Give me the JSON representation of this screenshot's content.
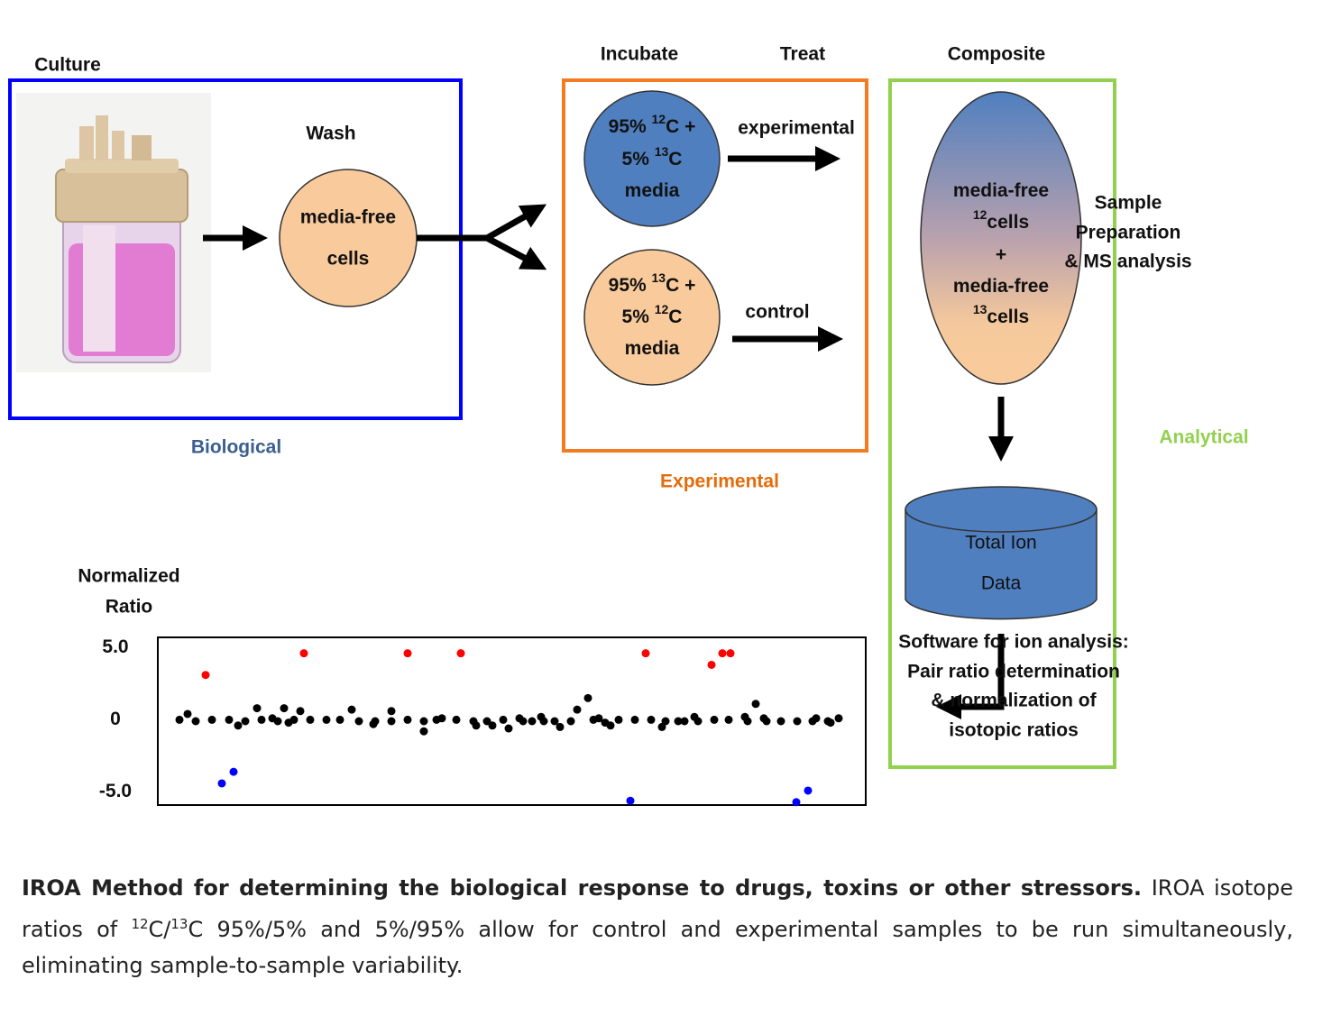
{
  "labels": {
    "culture": "Culture",
    "wash": "Wash",
    "incubate": "Incubate",
    "treat": "Treat",
    "composite": "Composite",
    "experimental_arrow": "experimental",
    "control_arrow": "control",
    "biological": "Biological",
    "experimental": "Experimental",
    "analytical": "Analytical",
    "sample_prep": [
      "Sample",
      "Preparation",
      "& MS analysis"
    ],
    "software": [
      "Software for ion analysis:",
      "Pair ratio determination",
      "& normalization of",
      "isotopic ratios"
    ]
  },
  "nodes": {
    "wash_cells": [
      "media-free",
      "cells"
    ],
    "media_12c": [
      [
        {
          "t": "95% "
        },
        {
          "sup": "12"
        },
        {
          "t": "C +"
        }
      ],
      [
        {
          "t": "5% "
        },
        {
          "sup": "13"
        },
        {
          "t": "C"
        }
      ],
      [
        {
          "t": "media"
        }
      ]
    ],
    "media_13c": [
      [
        {
          "t": "95% "
        },
        {
          "sup": "13"
        },
        {
          "t": "C +"
        }
      ],
      [
        {
          "t": "5% "
        },
        {
          "sup": "12"
        },
        {
          "t": "C"
        }
      ],
      [
        {
          "t": "media"
        }
      ]
    ],
    "composite": [
      [
        {
          "t": "media-free"
        }
      ],
      [
        {
          "sup": "12"
        },
        {
          "t": "cells"
        }
      ],
      [
        {
          "t": "+"
        }
      ],
      [
        {
          "t": "media-free"
        }
      ],
      [
        {
          "sup": "13"
        },
        {
          "t": "cells"
        }
      ]
    ],
    "database": [
      "Total Ion",
      "Data"
    ]
  },
  "caption": {
    "bold": "IROA Method for determining the biological response to drugs, toxins or other stressors.",
    "parts": [
      {
        "t": " IROA isotope ratios of "
      },
      {
        "sup": "12"
      },
      {
        "t": "C/"
      },
      {
        "sup": "13"
      },
      {
        "t": "C 95%/5% and 5%/95% allow for control and experimental samples to be run simultaneously, eliminating sample-to-sample variability."
      }
    ]
  },
  "chart_data": {
    "type": "scatter",
    "ylabel": [
      "Normalized",
      "Ratio"
    ],
    "xlim": [
      0,
      785
    ],
    "ylim": [
      -5.9,
      5.7
    ],
    "yticks": [
      {
        "value": 5,
        "label": "5.0"
      },
      0,
      {
        "value": -5,
        "label": "-5.0"
      }
    ],
    "series": [
      {
        "color": "#000000",
        "x": [
          24,
          33,
          42,
          60,
          79,
          89,
          97,
          110,
          115,
          127,
          133,
          140,
          145,
          151,
          158,
          169,
          187,
          202,
          215,
          223,
          239,
          241,
          259,
          259,
          277,
          295,
          295,
          309,
          315,
          331,
          350,
          353,
          365,
          371,
          383,
          389,
          401,
          405,
          415,
          425,
          428,
          440,
          446,
          458,
          465,
          477,
          483,
          489,
          496,
          502,
          511,
          529,
          547,
          559,
          563,
          577,
          584,
          595,
          599,
          617,
          633,
          651,
          654,
          663,
          672,
          675,
          691,
          709,
          726,
          730,
          743,
          746,
          755
        ],
        "values": [
          0,
          0.4,
          -0.1,
          0,
          0,
          -0.4,
          -0.1,
          0.8,
          0,
          0.1,
          -0.1,
          0.8,
          -0.2,
          0,
          0.6,
          0,
          0,
          0,
          0.7,
          -0.1,
          -0.3,
          -0.1,
          0.6,
          -0.1,
          0,
          -0.8,
          -0.1,
          0,
          0.1,
          0,
          -0.1,
          -0.4,
          -0.1,
          -0.4,
          0,
          -0.6,
          0.1,
          -0.1,
          -0.1,
          0.2,
          -0.1,
          -0.1,
          -0.5,
          -0.1,
          0.7,
          1.5,
          0,
          0.1,
          -0.2,
          -0.4,
          0,
          0,
          0,
          -0.5,
          -0.1,
          -0.1,
          -0.1,
          0.2,
          -0.1,
          0,
          0,
          0.2,
          -0.1,
          1.1,
          0.1,
          -0.1,
          -0.1,
          -0.1,
          -0.1,
          0.1,
          -0.1,
          -0.2,
          0.1
        ]
      },
      {
        "color": "#ff0000",
        "x": [
          53,
          162,
          277,
          336,
          541,
          614,
          626,
          635
        ],
        "values": [
          3.1,
          4.6,
          4.6,
          4.6,
          4.6,
          3.8,
          4.6,
          4.6
        ]
      },
      {
        "color": "#0000ff",
        "x": [
          71,
          84,
          524,
          708,
          721
        ],
        "values": [
          -4.4,
          -3.6,
          -5.6,
          -5.7,
          -4.9
        ]
      }
    ]
  }
}
